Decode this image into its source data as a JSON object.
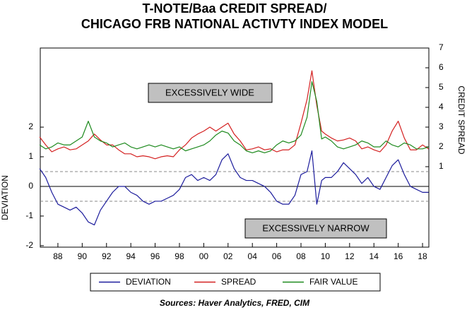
{
  "chart_data": {
    "type": "line",
    "title": "T-NOTE/Baa CREDIT SPREAD/",
    "subtitle": "CHICAGO FRB NATIONAL ACTIVTY INDEX MODEL",
    "ylabel": "DEVIATION",
    "y2label": "CREDIT SPREAD",
    "source": "Sources:  Haver Analytics, FRED, CIM",
    "annotations": [
      "EXCESSIVELY WIDE",
      "EXCESSIVELY NARROW"
    ],
    "x": [
      1986.5,
      1987,
      1987.5,
      1988,
      1988.5,
      1989,
      1989.5,
      1990,
      1990.5,
      1991,
      1991.5,
      1992,
      1992.5,
      1993,
      1993.5,
      1994,
      1994.5,
      1995,
      1995.5,
      1996,
      1996.5,
      1997,
      1997.5,
      1998,
      1998.5,
      1999,
      1999.5,
      2000,
      2000.5,
      2001,
      2001.5,
      2002,
      2002.5,
      2003,
      2003.5,
      2004,
      2004.5,
      2005,
      2005.5,
      2006,
      2006.5,
      2007,
      2007.5,
      2008,
      2008.5,
      2008.9,
      2009.3,
      2009.7,
      2010,
      2010.5,
      2011,
      2011.5,
      2012,
      2012.5,
      2013,
      2013.5,
      2014,
      2014.5,
      2015,
      2015.5,
      2016,
      2016.5,
      2017,
      2017.5,
      2018,
      2018.5
    ],
    "series": [
      {
        "name": "DEVIATION",
        "color": "#1c1c9c",
        "axis": "y",
        "values": [
          0.6,
          0.3,
          -0.2,
          -0.6,
          -0.7,
          -0.8,
          -0.7,
          -0.9,
          -1.2,
          -1.3,
          -0.8,
          -0.5,
          -0.2,
          0.0,
          0.0,
          -0.2,
          -0.3,
          -0.5,
          -0.6,
          -0.5,
          -0.5,
          -0.4,
          -0.3,
          -0.1,
          0.3,
          0.4,
          0.2,
          0.3,
          0.2,
          0.4,
          0.9,
          1.1,
          0.6,
          0.3,
          0.2,
          0.2,
          0.1,
          0.0,
          -0.2,
          -0.5,
          -0.6,
          -0.6,
          -0.3,
          0.4,
          0.5,
          1.2,
          -0.6,
          0.2,
          0.3,
          0.3,
          0.5,
          0.8,
          0.6,
          0.4,
          0.1,
          0.3,
          0.0,
          -0.1,
          0.3,
          0.7,
          0.9,
          0.4,
          0.0,
          -0.1,
          -0.2,
          -0.2
        ]
      },
      {
        "name": "SPREAD",
        "color": "#d42020",
        "axis": "y2",
        "values": [
          2.5,
          2.1,
          1.75,
          1.9,
          2.0,
          1.85,
          1.9,
          2.1,
          2.3,
          2.65,
          2.35,
          2.1,
          2.1,
          1.85,
          1.65,
          1.65,
          1.5,
          1.55,
          1.5,
          1.4,
          1.5,
          1.55,
          1.5,
          1.85,
          2.1,
          2.45,
          2.65,
          2.8,
          3.0,
          2.8,
          3.0,
          3.2,
          2.65,
          2.3,
          1.85,
          1.9,
          2.0,
          1.85,
          1.9,
          1.75,
          1.85,
          1.85,
          2.1,
          3.2,
          4.4,
          5.85,
          4.1,
          2.8,
          2.65,
          2.45,
          2.3,
          2.35,
          2.45,
          2.3,
          1.9,
          2.0,
          1.85,
          1.75,
          2.1,
          2.8,
          3.3,
          2.45,
          1.85,
          1.85,
          2.1,
          1.9
        ]
      },
      {
        "name": "FAIR VALUE",
        "color": "#1e8a1e",
        "axis": "y2",
        "values": [
          2.1,
          1.9,
          2.0,
          2.2,
          2.1,
          2.1,
          2.3,
          2.5,
          3.3,
          2.5,
          2.3,
          2.2,
          2.0,
          2.1,
          2.2,
          2.0,
          1.9,
          2.0,
          2.1,
          2.0,
          2.1,
          2.0,
          1.9,
          2.0,
          1.8,
          1.9,
          2.0,
          2.1,
          2.3,
          2.6,
          2.8,
          2.7,
          2.3,
          2.1,
          1.8,
          1.7,
          1.8,
          1.7,
          1.8,
          2.1,
          2.3,
          2.2,
          2.3,
          2.6,
          3.5,
          5.3,
          4.3,
          2.4,
          2.5,
          2.3,
          2.0,
          1.9,
          2.0,
          2.1,
          2.3,
          2.2,
          2.0,
          2.0,
          2.3,
          2.1,
          2.0,
          2.2,
          2.1,
          1.9,
          1.9,
          2.0
        ]
      }
    ],
    "xlim": [
      1986.55,
      2018.52
    ],
    "xticks": [
      {
        "value": 1988,
        "label": "88"
      },
      {
        "value": 1990,
        "label": "90"
      },
      {
        "value": 1992,
        "label": "92"
      },
      {
        "value": 1994,
        "label": "94"
      },
      {
        "value": 1996,
        "label": "96"
      },
      {
        "value": 1998,
        "label": "98"
      },
      {
        "value": 2000,
        "label": "00"
      },
      {
        "value": 2002,
        "label": "02"
      },
      {
        "value": 2004,
        "label": "04"
      },
      {
        "value": 2006,
        "label": "06"
      },
      {
        "value": 2008,
        "label": "08"
      },
      {
        "value": 2010,
        "label": "10"
      },
      {
        "value": 2012,
        "label": "12"
      },
      {
        "value": 2014,
        "label": "14"
      },
      {
        "value": 2016,
        "label": "16"
      },
      {
        "value": 2018,
        "label": "18"
      }
    ],
    "ylim": [
      -2.05,
      4.67
    ],
    "yticks": [
      -2,
      -1,
      0,
      1,
      2
    ],
    "y2lim": [
      -3.07,
      7
    ],
    "y2ticks": [
      1,
      2,
      3,
      4,
      5,
      6,
      7
    ],
    "ref_lines": [
      {
        "value": 0,
        "style": "solid"
      },
      {
        "value": 0.5,
        "style": "dashed"
      },
      {
        "value": -0.5,
        "style": "dashed"
      }
    ],
    "legend": "bottom"
  }
}
